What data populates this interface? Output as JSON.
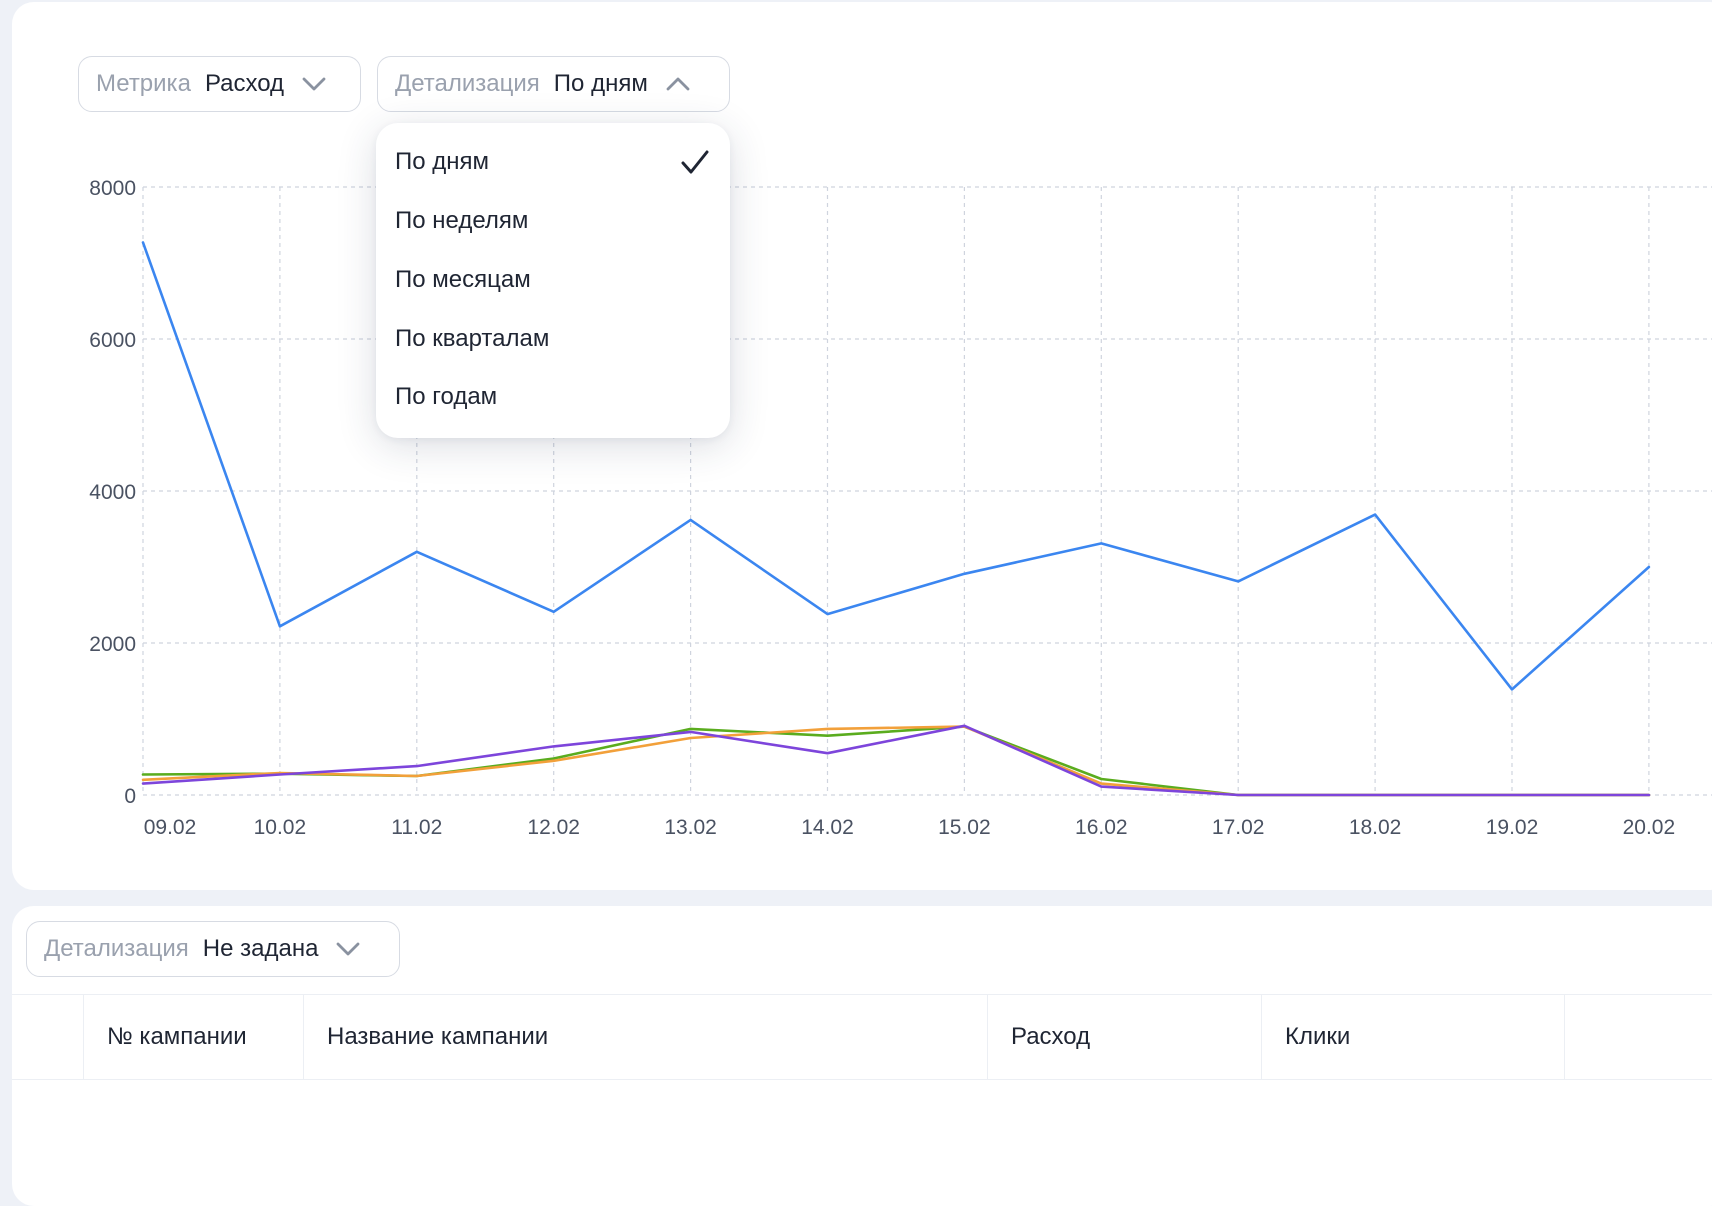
{
  "controls": {
    "metric": {
      "label": "Метрика",
      "value": "Расход"
    },
    "detail": {
      "label": "Детализация",
      "value": "По дням",
      "open": true
    },
    "table_detail": {
      "label": "Детализация",
      "value": "Не задана"
    }
  },
  "dropdown": {
    "selected": 0,
    "items": [
      "По дням",
      "По неделям",
      "По месяцам",
      "По кварталам",
      "По годам"
    ]
  },
  "chart_data": {
    "type": "line",
    "categories": [
      "09.02",
      "10.02",
      "11.02",
      "12.02",
      "13.02",
      "14.02",
      "15.02",
      "16.02",
      "17.02",
      "18.02",
      "19.02",
      "20.02"
    ],
    "ylim": [
      0,
      8000
    ],
    "yticks": [
      "0",
      "2000",
      "4000",
      "6000",
      "8000"
    ],
    "grid": true,
    "series": [
      {
        "color": "#3b86f0",
        "values": [
          7270,
          2220,
          3200,
          2410,
          3620,
          2380,
          2910,
          3310,
          2810,
          3690,
          1390,
          3000
        ]
      },
      {
        "color": "#5aac1e",
        "values": [
          270,
          280,
          250,
          480,
          870,
          780,
          900,
          210,
          0,
          0,
          0,
          0
        ]
      },
      {
        "color": "#f2a03a",
        "values": [
          200,
          290,
          250,
          450,
          750,
          870,
          900,
          150,
          0,
          0,
          0,
          0
        ]
      },
      {
        "color": "#7d45db",
        "values": [
          150,
          270,
          380,
          640,
          830,
          550,
          910,
          110,
          0,
          0,
          0,
          0
        ]
      }
    ]
  },
  "table": {
    "columns": [
      "№ кампании",
      "Название кампании",
      "Расход",
      "Клики"
    ]
  }
}
